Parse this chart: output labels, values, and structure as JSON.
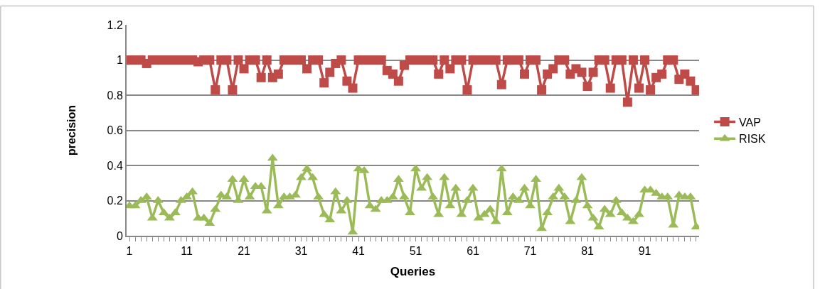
{
  "chart_data": {
    "type": "line",
    "xlabel": "Queries",
    "ylabel": "precision",
    "x": [
      1,
      2,
      3,
      4,
      5,
      6,
      7,
      8,
      9,
      10,
      11,
      12,
      13,
      14,
      15,
      16,
      17,
      18,
      19,
      20,
      21,
      22,
      23,
      24,
      25,
      26,
      27,
      28,
      29,
      30,
      31,
      32,
      33,
      34,
      35,
      36,
      37,
      38,
      39,
      40,
      41,
      42,
      43,
      44,
      45,
      46,
      47,
      48,
      49,
      50,
      51,
      52,
      53,
      54,
      55,
      56,
      57,
      58,
      59,
      60,
      61,
      62,
      63,
      64,
      65,
      66,
      67,
      68,
      69,
      70,
      71,
      72,
      73,
      74,
      75,
      76,
      77,
      78,
      79,
      80,
      81,
      82,
      83,
      84,
      85,
      86,
      87,
      88,
      89,
      90,
      91,
      92,
      93,
      94,
      95,
      96,
      97,
      98,
      99,
      100
    ],
    "xlim": [
      0.5,
      100.5
    ],
    "xticks": [
      1,
      {
        "value": 2,
        "label": null
      },
      {
        "value": 3,
        "label": null
      },
      {
        "value": 4,
        "label": null
      },
      {
        "value": 5,
        "label": null
      },
      {
        "value": 6,
        "label": null
      },
      {
        "value": 7,
        "label": null
      },
      {
        "value": 8,
        "label": null
      },
      {
        "value": 9,
        "label": null
      },
      {
        "value": 10,
        "label": null
      },
      11,
      {
        "value": 12,
        "label": null
      },
      {
        "value": 13,
        "label": null
      },
      {
        "value": 14,
        "label": null
      },
      {
        "value": 15,
        "label": null
      },
      {
        "value": 16,
        "label": null
      },
      {
        "value": 17,
        "label": null
      },
      {
        "value": 18,
        "label": null
      },
      {
        "value": 19,
        "label": null
      },
      {
        "value": 20,
        "label": null
      },
      21,
      {
        "value": 22,
        "label": null
      },
      {
        "value": 23,
        "label": null
      },
      {
        "value": 24,
        "label": null
      },
      {
        "value": 25,
        "label": null
      },
      {
        "value": 26,
        "label": null
      },
      {
        "value": 27,
        "label": null
      },
      {
        "value": 28,
        "label": null
      },
      {
        "value": 29,
        "label": null
      },
      {
        "value": 30,
        "label": null
      },
      31,
      {
        "value": 32,
        "label": null
      },
      {
        "value": 33,
        "label": null
      },
      {
        "value": 34,
        "label": null
      },
      {
        "value": 35,
        "label": null
      },
      {
        "value": 36,
        "label": null
      },
      {
        "value": 37,
        "label": null
      },
      {
        "value": 38,
        "label": null
      },
      {
        "value": 39,
        "label": null
      },
      {
        "value": 40,
        "label": null
      },
      41,
      {
        "value": 42,
        "label": null
      },
      {
        "value": 43,
        "label": null
      },
      {
        "value": 44,
        "label": null
      },
      {
        "value": 45,
        "label": null
      },
      {
        "value": 46,
        "label": null
      },
      {
        "value": 47,
        "label": null
      },
      {
        "value": 48,
        "label": null
      },
      {
        "value": 49,
        "label": null
      },
      {
        "value": 50,
        "label": null
      },
      51,
      {
        "value": 52,
        "label": null
      },
      {
        "value": 53,
        "label": null
      },
      {
        "value": 54,
        "label": null
      },
      {
        "value": 55,
        "label": null
      },
      {
        "value": 56,
        "label": null
      },
      {
        "value": 57,
        "label": null
      },
      {
        "value": 58,
        "label": null
      },
      {
        "value": 59,
        "label": null
      },
      {
        "value": 60,
        "label": null
      },
      61,
      {
        "value": 62,
        "label": null
      },
      {
        "value": 63,
        "label": null
      },
      {
        "value": 64,
        "label": null
      },
      {
        "value": 65,
        "label": null
      },
      {
        "value": 66,
        "label": null
      },
      {
        "value": 67,
        "label": null
      },
      {
        "value": 68,
        "label": null
      },
      {
        "value": 69,
        "label": null
      },
      {
        "value": 70,
        "label": null
      },
      71,
      {
        "value": 72,
        "label": null
      },
      {
        "value": 73,
        "label": null
      },
      {
        "value": 74,
        "label": null
      },
      {
        "value": 75,
        "label": null
      },
      {
        "value": 76,
        "label": null
      },
      {
        "value": 77,
        "label": null
      },
      {
        "value": 78,
        "label": null
      },
      {
        "value": 79,
        "label": null
      },
      {
        "value": 80,
        "label": null
      },
      81,
      {
        "value": 82,
        "label": null
      },
      {
        "value": 83,
        "label": null
      },
      {
        "value": 84,
        "label": null
      },
      {
        "value": 85,
        "label": null
      },
      {
        "value": 86,
        "label": null
      },
      {
        "value": 87,
        "label": null
      },
      {
        "value": 88,
        "label": null
      },
      {
        "value": 89,
        "label": null
      },
      {
        "value": 90,
        "label": null
      },
      91,
      {
        "value": 92,
        "label": null
      },
      {
        "value": 93,
        "label": null
      },
      {
        "value": 94,
        "label": null
      },
      {
        "value": 95,
        "label": null
      },
      {
        "value": 96,
        "label": null
      },
      {
        "value": 97,
        "label": null
      },
      {
        "value": 98,
        "label": null
      },
      {
        "value": 99,
        "label": null
      },
      {
        "value": 100,
        "label": null
      }
    ],
    "ylim": [
      0,
      1.2
    ],
    "yticks": [
      0,
      0.2,
      0.4,
      0.6,
      0.8,
      1,
      1.2
    ],
    "grid": "y",
    "legend": "right",
    "line_style": "solid",
    "series": [
      {
        "name": "VAP",
        "color": "#be4b48",
        "marker": "square",
        "values": [
          1,
          1,
          1,
          0.98,
          1,
          1,
          1,
          1,
          1,
          1,
          1,
          1,
          0.99,
          1,
          1,
          0.83,
          1,
          1,
          0.83,
          1,
          0.95,
          1,
          1,
          0.9,
          1,
          0.9,
          0.92,
          1,
          1,
          1,
          1,
          0.95,
          1,
          1,
          0.87,
          0.93,
          0.98,
          1,
          0.88,
          0.84,
          1,
          1,
          1,
          1,
          1,
          0.94,
          0.92,
          0.88,
          0.97,
          1,
          1,
          1,
          1,
          1,
          0.92,
          1,
          0.95,
          1,
          1,
          0.83,
          1,
          1,
          1,
          1,
          1,
          0.86,
          1,
          1,
          1,
          0.92,
          1,
          1,
          0.83,
          0.92,
          0.95,
          1,
          1,
          0.92,
          0.95,
          0.93,
          0.85,
          0.93,
          1,
          1,
          0.84,
          1,
          1,
          0.76,
          1,
          0.84,
          1,
          0.83,
          0.9,
          0.92,
          1,
          1,
          0.89,
          0.92,
          0.88,
          0.83
        ]
      },
      {
        "name": "RISK",
        "color": "#9bbb59",
        "marker": "triangle",
        "values": [
          0.17,
          0.17,
          0.2,
          0.22,
          0.1,
          0.2,
          0.13,
          0.1,
          0.13,
          0.2,
          0.22,
          0.25,
          0.1,
          0.1,
          0.07,
          0.15,
          0.23,
          0.22,
          0.32,
          0.2,
          0.32,
          0.22,
          0.28,
          0.28,
          0.14,
          0.44,
          0.17,
          0.22,
          0.22,
          0.23,
          0.33,
          0.38,
          0.33,
          0.22,
          0.12,
          0.09,
          0.25,
          0.14,
          0.2,
          0.02,
          0.38,
          0.37,
          0.17,
          0.15,
          0.2,
          0.2,
          0.22,
          0.32,
          0.22,
          0.13,
          0.38,
          0.27,
          0.33,
          0.22,
          0.12,
          0.33,
          0.17,
          0.27,
          0.12,
          0.2,
          0.27,
          0.1,
          0.12,
          0.15,
          0.08,
          0.38,
          0.13,
          0.22,
          0.2,
          0.27,
          0.17,
          0.32,
          0.04,
          0.13,
          0.22,
          0.27,
          0.22,
          0.08,
          0.2,
          0.33,
          0.17,
          0.1,
          0.05,
          0.15,
          0.12,
          0.2,
          0.13,
          0.1,
          0.08,
          0.12,
          0.26,
          0.26,
          0.24,
          0.22,
          0.22,
          0.06,
          0.23,
          0.22,
          0.22,
          0.05
        ]
      }
    ]
  }
}
